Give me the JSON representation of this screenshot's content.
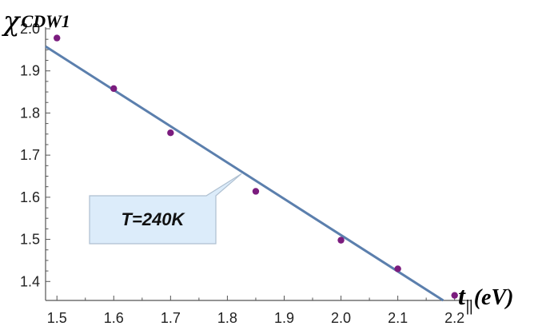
{
  "chart_data": {
    "type": "scatter",
    "xlim": [
      1.48,
      2.23
    ],
    "ylim": [
      1.355,
      2.0
    ],
    "x_ticks": [
      1.5,
      1.6,
      1.7,
      1.8,
      1.9,
      2.0,
      2.1,
      2.2
    ],
    "x_tick_labels": [
      "1.5",
      "1.6",
      "1.7",
      "1.8",
      "1.9",
      "2.0",
      "2.1",
      "2.2"
    ],
    "y_ticks": [
      1.4,
      1.5,
      1.6,
      1.7,
      1.8,
      1.9,
      2.0
    ],
    "y_tick_labels": [
      "1.4",
      "1.5",
      "1.6",
      "1.7",
      "1.8",
      "1.9",
      "2.0"
    ],
    "ylabel": {
      "symbol": "χ",
      "subscript": "CDW1"
    },
    "xlabel": {
      "symbol": "t",
      "subscript": "||",
      "unit": "(eV)"
    },
    "points": {
      "x": [
        1.5,
        1.6,
        1.7,
        1.85,
        2.0,
        2.1,
        2.2
      ],
      "y": [
        1.978,
        1.858,
        1.753,
        1.614,
        1.498,
        1.43,
        1.367
      ],
      "color": "#7b1c7e"
    },
    "fit_line": {
      "x": [
        1.48,
        2.18
      ],
      "y": [
        1.958,
        1.355
      ],
      "color": "#5b7fad"
    },
    "annotation": {
      "text": "T=240K",
      "pointer_x": 1.825,
      "pointer_y": 1.656,
      "fill": "#dcecfa",
      "border": "#aebfd0"
    },
    "grid": false,
    "axis_color": "#555555"
  }
}
